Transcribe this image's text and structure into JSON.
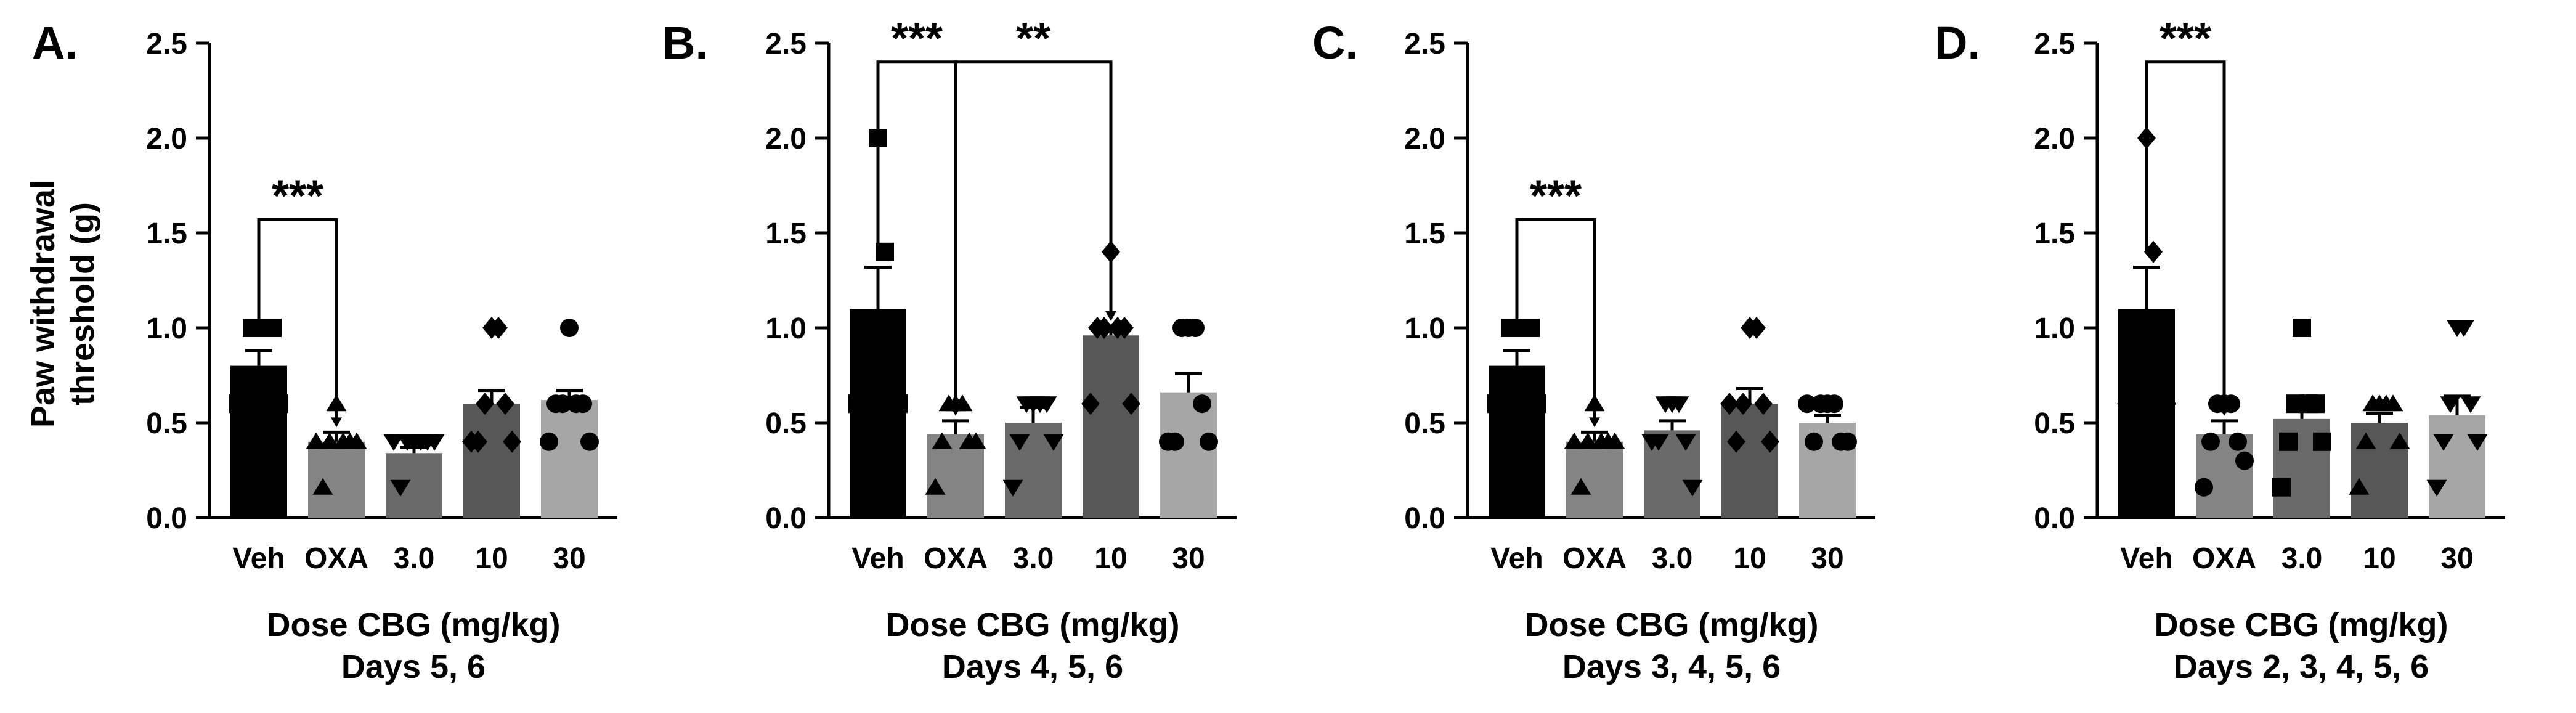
{
  "figure": {
    "ylabel_line1": "Paw withdrawal",
    "ylabel_line2": "threshold (g)"
  },
  "chart_data": [
    {
      "type": "bar",
      "panel_label": "A.",
      "categories": [
        "Veh",
        "OXA",
        "3.0",
        "10",
        "30"
      ],
      "values": [
        0.8,
        0.4,
        0.34,
        0.6,
        0.62
      ],
      "sem": [
        0.08,
        0.05,
        0.03,
        0.07,
        0.05
      ],
      "points": [
        [
          1.0,
          1.0,
          1.0,
          1.0,
          0.6,
          0.6,
          0.6
        ],
        [
          0.6,
          0.4,
          0.4,
          0.4,
          0.16,
          0.4,
          0.4
        ],
        [
          0.4,
          0.4,
          0.4,
          0.4,
          0.16,
          0.4,
          0.4
        ],
        [
          1.0,
          1.0,
          0.6,
          0.6,
          0.4,
          0.4,
          0.4
        ],
        [
          1.0,
          0.6,
          0.6,
          0.6,
          0.6,
          0.4,
          0.4
        ]
      ],
      "markers": [
        "square",
        "triangle-up",
        "triangle-down",
        "diamond",
        "circle"
      ],
      "colors": [
        "#000000",
        "#848484",
        "#6a6a6a",
        "#575757",
        "#a6a6a6"
      ],
      "ylim": [
        0,
        2.5
      ],
      "yticks": [
        "0.0",
        "0.5",
        "1.0",
        "1.5",
        "2.0",
        "2.5"
      ],
      "xlabel": "Dose CBG (mg/kg)",
      "subtitle": "Days 5, 6",
      "significance": [
        {
          "from": 0,
          "to": 1,
          "label": "***",
          "y": 1.57
        }
      ]
    },
    {
      "type": "bar",
      "panel_label": "B.",
      "categories": [
        "Veh",
        "OXA",
        "3.0",
        "10",
        "30"
      ],
      "values": [
        1.1,
        0.44,
        0.5,
        0.96,
        0.66
      ],
      "sem": [
        0.22,
        0.07,
        0.08,
        0.05,
        0.1
      ],
      "points": [
        [
          2.0,
          1.4,
          1.0,
          1.0,
          1.0,
          0.6,
          0.6
        ],
        [
          0.6,
          0.6,
          0.6,
          0.4,
          0.4,
          0.4,
          0.16
        ],
        [
          0.6,
          0.6,
          0.6,
          0.6,
          0.4,
          0.4,
          0.16
        ],
        [
          1.4,
          1.0,
          1.0,
          1.0,
          1.0,
          0.6,
          0.6
        ],
        [
          1.0,
          1.0,
          1.0,
          0.6,
          0.4,
          0.4,
          0.4
        ]
      ],
      "markers": [
        "square",
        "triangle-up",
        "triangle-down",
        "diamond",
        "circle"
      ],
      "colors": [
        "#000000",
        "#848484",
        "#6a6a6a",
        "#575757",
        "#a6a6a6"
      ],
      "ylim": [
        0,
        2.5
      ],
      "yticks": [
        "0.0",
        "0.5",
        "1.0",
        "1.5",
        "2.0",
        "2.5"
      ],
      "xlabel": "Dose CBG (mg/kg)",
      "subtitle": "Days 4, 5, 6",
      "significance": [
        {
          "from": 0,
          "to": 1,
          "label": "***",
          "y": 2.4
        },
        {
          "from": 1,
          "to": 3,
          "label": "**",
          "y": 2.4
        }
      ]
    },
    {
      "type": "bar",
      "panel_label": "C.",
      "categories": [
        "Veh",
        "OXA",
        "3.0",
        "10",
        "30"
      ],
      "values": [
        0.8,
        0.4,
        0.46,
        0.6,
        0.5
      ],
      "sem": [
        0.08,
        0.05,
        0.05,
        0.08,
        0.04
      ],
      "points": [
        [
          1.0,
          1.0,
          1.0,
          1.0,
          0.6,
          0.6,
          0.6
        ],
        [
          0.6,
          0.4,
          0.4,
          0.4,
          0.16,
          0.4,
          0.4
        ],
        [
          0.6,
          0.6,
          0.6,
          0.4,
          0.4,
          0.16,
          0.4
        ],
        [
          1.0,
          1.0,
          0.6,
          0.6,
          0.4,
          0.4,
          0.6
        ],
        [
          0.6,
          0.6,
          0.6,
          0.4,
          0.4,
          0.4,
          0.6
        ]
      ],
      "markers": [
        "square",
        "triangle-up",
        "triangle-down",
        "diamond",
        "circle"
      ],
      "colors": [
        "#000000",
        "#848484",
        "#6a6a6a",
        "#575757",
        "#a6a6a6"
      ],
      "ylim": [
        0,
        2.5
      ],
      "yticks": [
        "0.0",
        "0.5",
        "1.0",
        "1.5",
        "2.0",
        "2.5"
      ],
      "xlabel": "Dose CBG (mg/kg)",
      "subtitle": "Days 3, 4, 5, 6",
      "significance": [
        {
          "from": 0,
          "to": 1,
          "label": "***",
          "y": 1.57
        }
      ]
    },
    {
      "type": "bar",
      "panel_label": "D.",
      "categories": [
        "Veh",
        "OXA",
        "3.0",
        "10",
        "30"
      ],
      "values": [
        1.1,
        0.44,
        0.52,
        0.5,
        0.54
      ],
      "sem": [
        0.22,
        0.07,
        0.08,
        0.05,
        0.1
      ],
      "points": [
        [
          2.0,
          1.4,
          1.0,
          1.0,
          0.6,
          0.6,
          0.6
        ],
        [
          0.6,
          0.6,
          0.6,
          0.4,
          0.4,
          0.3,
          0.16
        ],
        [
          1.0,
          0.6,
          0.6,
          0.6,
          0.4,
          0.4,
          0.16
        ],
        [
          0.6,
          0.6,
          0.6,
          0.6,
          0.4,
          0.4,
          0.16
        ],
        [
          1.0,
          1.0,
          0.6,
          0.6,
          0.4,
          0.4,
          0.16
        ]
      ],
      "markers": [
        "diamond",
        "circle",
        "square",
        "triangle-up",
        "triangle-down"
      ],
      "colors": [
        "#000000",
        "#848484",
        "#6a6a6a",
        "#575757",
        "#a6a6a6"
      ],
      "ylim": [
        0,
        2.5
      ],
      "yticks": [
        "0.0",
        "0.5",
        "1.0",
        "1.5",
        "2.0",
        "2.5"
      ],
      "xlabel": "Dose CBG (mg/kg)",
      "subtitle": "Days 2, 3, 4, 5, 6",
      "significance": [
        {
          "from": 0,
          "to": 1,
          "label": "***",
          "y": 2.4
        }
      ]
    }
  ]
}
